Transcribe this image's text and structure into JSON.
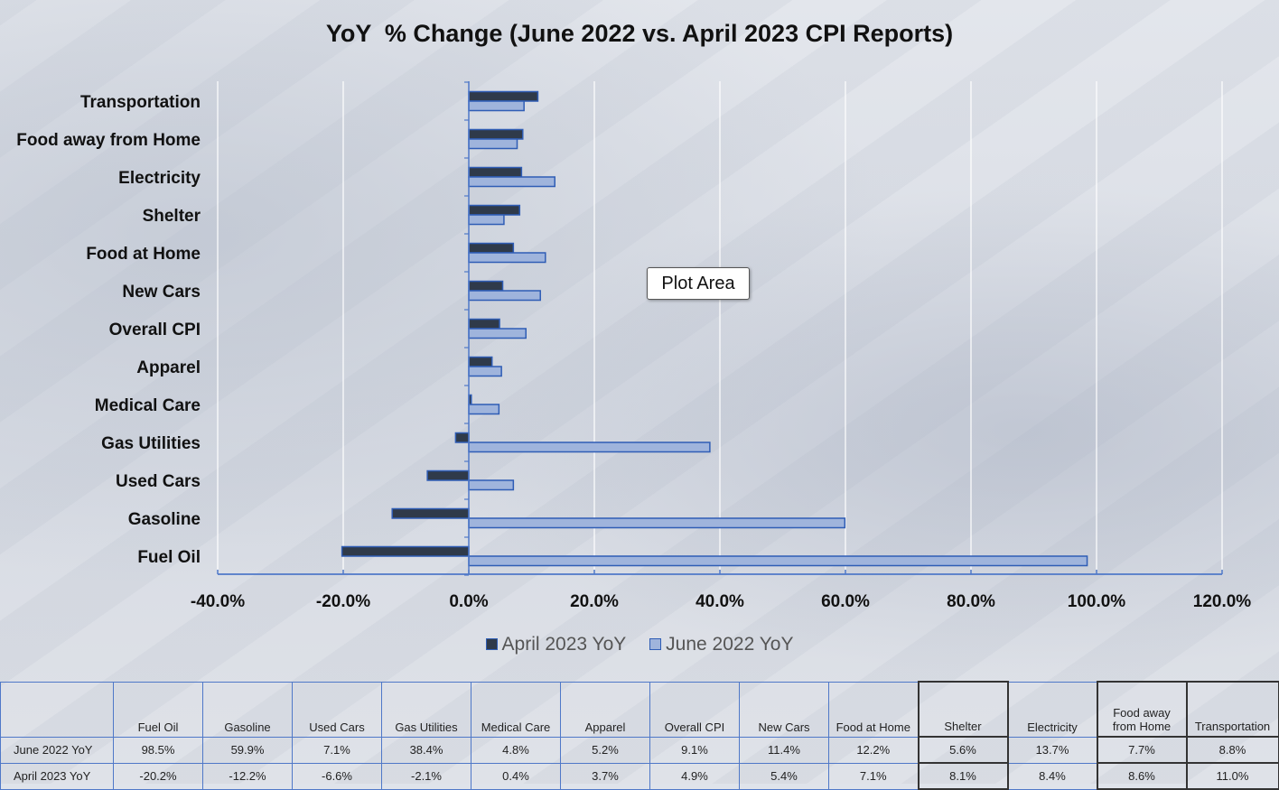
{
  "chart_data": {
    "type": "bar",
    "orientation": "horizontal",
    "title": "YoY  % Change (June 2022 vs. April 2023 CPI Reports)",
    "categories": [
      "Fuel Oil",
      "Gasoline",
      "Used Cars",
      "Gas Utilities",
      "Medical Care",
      "Apparel",
      "Overall CPI",
      "New Cars",
      "Food at Home",
      "Shelter",
      "Electricity",
      "Food away from Home",
      "Transportation"
    ],
    "table_headers": [
      "Fuel Oil",
      "Gasoline",
      "Used Cars",
      "Gas Utilities",
      "Medical Care",
      "Apparel",
      "Overall CPI",
      "New Cars",
      "Food at Home",
      "Shelter",
      "Electricity",
      "Food away\nfrom Home",
      "Transportation"
    ],
    "series": [
      {
        "name": "April 2023 YoY",
        "color": "#2f3a4a",
        "values": [
          -20.2,
          -12.2,
          -6.6,
          -2.1,
          0.4,
          3.7,
          4.9,
          5.4,
          7.1,
          8.1,
          8.4,
          8.6,
          11.0
        ]
      },
      {
        "name": "June 2022 YoY",
        "color": "#9fb4dc",
        "values": [
          98.5,
          59.9,
          7.1,
          38.4,
          4.8,
          5.2,
          9.1,
          11.4,
          12.2,
          5.6,
          13.7,
          7.7,
          8.8
        ]
      }
    ],
    "table_rows": [
      {
        "label": "June 2022 YoY",
        "cells": [
          "98.5%",
          "59.9%",
          "7.1%",
          "38.4%",
          "4.8%",
          "5.2%",
          "9.1%",
          "11.4%",
          "12.2%",
          "5.6%",
          "13.7%",
          "7.7%",
          "8.8%"
        ]
      },
      {
        "label": "April 2023 YoY",
        "cells": [
          "-20.2%",
          "-12.2%",
          "-6.6%",
          "-2.1%",
          "0.4%",
          "3.7%",
          "4.9%",
          "5.4%",
          "7.1%",
          "8.1%",
          "8.4%",
          "8.6%",
          "11.0%"
        ]
      }
    ],
    "xlim": [
      -40,
      120
    ],
    "x_ticks": [
      -40,
      -20,
      0,
      20,
      40,
      60,
      80,
      100,
      120
    ],
    "x_tick_labels": [
      "-40.0%",
      "-20.0%",
      "0.0%",
      "20.0%",
      "40.0%",
      "60.0%",
      "80.0%",
      "100.0%",
      "120.0%"
    ],
    "grid": "vertical",
    "legend_position": "bottom",
    "bar_outline_color": "#2f5db5"
  },
  "tooltip": "Plot Area"
}
